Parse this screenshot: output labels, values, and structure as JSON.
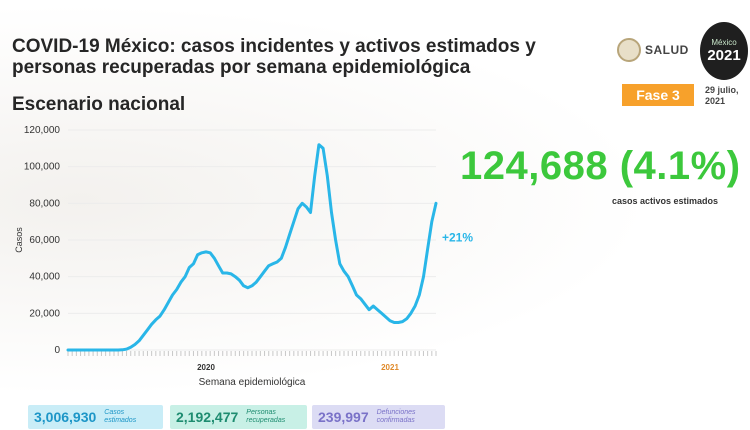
{
  "header": {
    "title": "COVID-19 México: casos incidentes y activos estimados y personas recuperadas por semana epidemiológica",
    "subtitle": "Escenario nacional",
    "salud": "SALUD",
    "logo_top": "México",
    "logo_year": "2021",
    "fase": "Fase 3",
    "date_line1": "29 julio,",
    "date_line2": "2021"
  },
  "highlight": {
    "value": "124,688 (4.1%)",
    "label": "casos activos estimados"
  },
  "summary": [
    {
      "value": "3,006,930",
      "label1": "Casos",
      "label2": "estimados"
    },
    {
      "value": "2,192,477",
      "label1": "Personas",
      "label2": "recuperadas"
    },
    {
      "value": "239,997",
      "label1": "Defunciones",
      "label2": "confirmadas"
    }
  ],
  "colors": {
    "line": "#29b6e8",
    "accent_green": "#3cc83c",
    "fase": "#f7a12b"
  },
  "chart_data": {
    "type": "line",
    "title": "",
    "xlabel": "Semana epidemiológica",
    "ylabel": "Casos",
    "ylim": [
      0,
      120000
    ],
    "yticks": [
      "0",
      "20,000",
      "40,000",
      "60,000",
      "80,000",
      "100,000",
      "120,000"
    ],
    "year_labels": [
      "2020",
      "2021"
    ],
    "annotation": "+21%",
    "series": [
      {
        "name": "Casos activos estimados",
        "values": [
          0,
          0,
          0,
          0,
          0,
          0,
          0,
          0,
          0,
          0,
          0,
          0,
          0,
          100,
          500,
          1500,
          3000,
          5000,
          8000,
          11000,
          14000,
          16500,
          18500,
          22000,
          26000,
          30000,
          33000,
          37000,
          40000,
          45000,
          47000,
          52000,
          53000,
          53500,
          53000,
          50000,
          46000,
          42000,
          42000,
          41500,
          40000,
          38000,
          35000,
          34000,
          35000,
          37000,
          40000,
          43000,
          46000,
          47000,
          48000,
          50000,
          56000,
          63000,
          70000,
          77000,
          80000,
          78000,
          75000,
          95000,
          112000,
          110000,
          95000,
          75000,
          60000,
          47000,
          43000,
          40000,
          35000,
          30000,
          28000,
          25000,
          22000,
          24000,
          22000,
          20000,
          18000,
          16000,
          15000,
          15000,
          15500,
          17000,
          20000,
          24000,
          30000,
          40000,
          55000,
          70000,
          80000
        ]
      }
    ]
  }
}
